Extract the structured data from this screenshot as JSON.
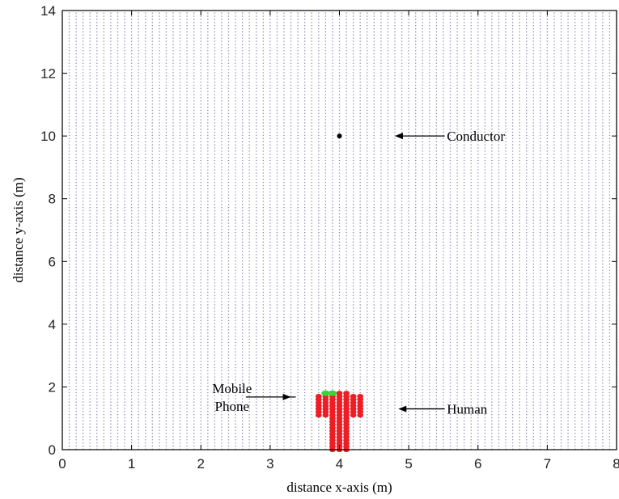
{
  "chart_data": {
    "type": "scatter",
    "title": "",
    "xlabel": "distance x-axis (m)",
    "ylabel": "distance y-axis (m)",
    "xlim": [
      0,
      8
    ],
    "ylim": [
      0,
      14
    ],
    "xticks": [
      "0",
      "1",
      "2",
      "3",
      "4",
      "5",
      "6",
      "7",
      "8"
    ],
    "yticks": [
      "0",
      "2",
      "4",
      "6",
      "8",
      "10",
      "12",
      "14"
    ],
    "grid_points": {
      "x_step": 0.1,
      "y_step": 0.1,
      "color": "#8c8cb4"
    },
    "series": [
      {
        "role": "conductor",
        "color": "#000000",
        "points": [
          [
            4.0,
            10.0
          ]
        ]
      },
      {
        "role": "human",
        "color": "#ee1c24",
        "points": [
          [
            3.7,
            1.1
          ],
          [
            3.7,
            1.2
          ],
          [
            3.7,
            1.3
          ],
          [
            3.7,
            1.4
          ],
          [
            3.7,
            1.5
          ],
          [
            3.7,
            1.6
          ],
          [
            3.7,
            1.7
          ],
          [
            3.8,
            1.1
          ],
          [
            3.8,
            1.2
          ],
          [
            3.8,
            1.3
          ],
          [
            3.8,
            1.4
          ],
          [
            3.8,
            1.5
          ],
          [
            3.8,
            1.6
          ],
          [
            3.8,
            1.7
          ],
          [
            3.9,
            0.0
          ],
          [
            3.9,
            0.1
          ],
          [
            3.9,
            0.2
          ],
          [
            3.9,
            0.3
          ],
          [
            3.9,
            0.4
          ],
          [
            3.9,
            0.5
          ],
          [
            3.9,
            0.6
          ],
          [
            3.9,
            0.7
          ],
          [
            3.9,
            0.8
          ],
          [
            3.9,
            0.9
          ],
          [
            3.9,
            1.0
          ],
          [
            3.9,
            1.1
          ],
          [
            3.9,
            1.2
          ],
          [
            3.9,
            1.3
          ],
          [
            3.9,
            1.4
          ],
          [
            3.9,
            1.5
          ],
          [
            3.9,
            1.6
          ],
          [
            3.9,
            1.7
          ],
          [
            4.0,
            0.0
          ],
          [
            4.0,
            0.1
          ],
          [
            4.0,
            0.2
          ],
          [
            4.0,
            0.3
          ],
          [
            4.0,
            0.4
          ],
          [
            4.0,
            0.5
          ],
          [
            4.0,
            0.6
          ],
          [
            4.0,
            0.7
          ],
          [
            4.0,
            0.8
          ],
          [
            4.0,
            0.9
          ],
          [
            4.0,
            1.0
          ],
          [
            4.0,
            1.1
          ],
          [
            4.0,
            1.2
          ],
          [
            4.0,
            1.3
          ],
          [
            4.0,
            1.4
          ],
          [
            4.0,
            1.5
          ],
          [
            4.0,
            1.6
          ],
          [
            4.0,
            1.7
          ],
          [
            4.0,
            1.8
          ],
          [
            4.1,
            0.0
          ],
          [
            4.1,
            0.1
          ],
          [
            4.1,
            0.2
          ],
          [
            4.1,
            0.3
          ],
          [
            4.1,
            0.4
          ],
          [
            4.1,
            0.5
          ],
          [
            4.1,
            0.6
          ],
          [
            4.1,
            0.7
          ],
          [
            4.1,
            0.8
          ],
          [
            4.1,
            0.9
          ],
          [
            4.1,
            1.0
          ],
          [
            4.1,
            1.1
          ],
          [
            4.1,
            1.2
          ],
          [
            4.1,
            1.3
          ],
          [
            4.1,
            1.4
          ],
          [
            4.1,
            1.5
          ],
          [
            4.1,
            1.6
          ],
          [
            4.1,
            1.7
          ],
          [
            4.1,
            1.8
          ],
          [
            4.2,
            1.1
          ],
          [
            4.2,
            1.2
          ],
          [
            4.2,
            1.3
          ],
          [
            4.2,
            1.4
          ],
          [
            4.2,
            1.5
          ],
          [
            4.2,
            1.6
          ],
          [
            4.2,
            1.7
          ],
          [
            4.3,
            1.1
          ],
          [
            4.3,
            1.2
          ],
          [
            4.3,
            1.3
          ],
          [
            4.3,
            1.4
          ],
          [
            4.3,
            1.5
          ],
          [
            4.3,
            1.6
          ],
          [
            4.3,
            1.7
          ]
        ]
      },
      {
        "role": "mobile-phone",
        "color": "#3ad43a",
        "points": [
          [
            3.8,
            1.8
          ],
          [
            3.9,
            1.8
          ]
        ]
      }
    ],
    "annotations": [
      {
        "lines": [
          "Conductor"
        ],
        "arrow_to": [
          4.8,
          10.0
        ],
        "text_at": [
          5.55,
          10.0
        ],
        "anchor": "start",
        "line_from": [
          5.52,
          10.0
        ]
      },
      {
        "lines": [
          "Human"
        ],
        "arrow_to": [
          4.85,
          1.3
        ],
        "text_at": [
          5.55,
          1.3
        ],
        "anchor": "start",
        "line_from": [
          5.52,
          1.3
        ]
      },
      {
        "lines": [
          "Mobile",
          "Phone"
        ],
        "arrow_to": [
          3.3,
          1.68
        ],
        "text_at": [
          2.45,
          1.68
        ],
        "anchor": "middle",
        "line_from": [
          2.65,
          1.68
        ]
      }
    ]
  }
}
